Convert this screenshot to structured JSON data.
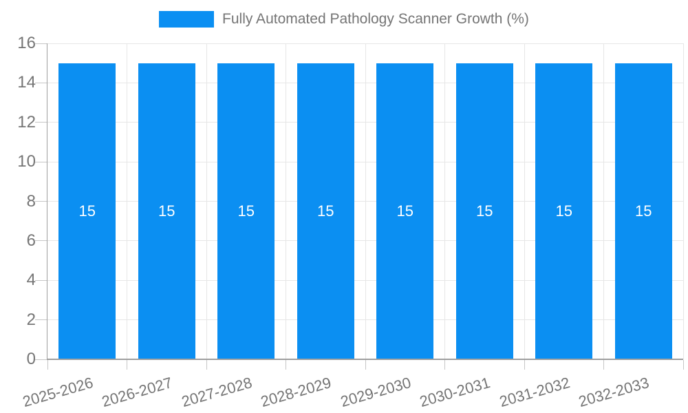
{
  "legend": {
    "label": "Fully Automated Pathology Scanner Growth (%)"
  },
  "chart_data": {
    "type": "bar",
    "title": "",
    "categories": [
      "2025-2026",
      "2026-2027",
      "2027-2028",
      "2028-2029",
      "2029-2030",
      "2030-2031",
      "2031-2032",
      "2032-2033"
    ],
    "series": [
      {
        "name": "Fully Automated Pathology Scanner Growth (%)",
        "values": [
          15,
          15,
          15,
          15,
          15,
          15,
          15,
          15
        ]
      }
    ],
    "value_labels": [
      "15",
      "15",
      "15",
      "15",
      "15",
      "15",
      "15",
      "15"
    ],
    "xlabel": "",
    "ylabel": "",
    "ylim": [
      0,
      16
    ],
    "yticks": [
      0,
      2,
      4,
      6,
      8,
      10,
      12,
      14,
      16
    ],
    "grid": "on",
    "legend_position": "top",
    "x_label_rotation_deg": -16,
    "colors": {
      "bar": "#0b8ff2",
      "label_text": "#757575",
      "bar_value_text": "#ffffff",
      "gridline": "#e6e6e6",
      "axis_line": "#9e9e9e",
      "tick": "#c6c6c6",
      "background": "#ffffff"
    }
  }
}
